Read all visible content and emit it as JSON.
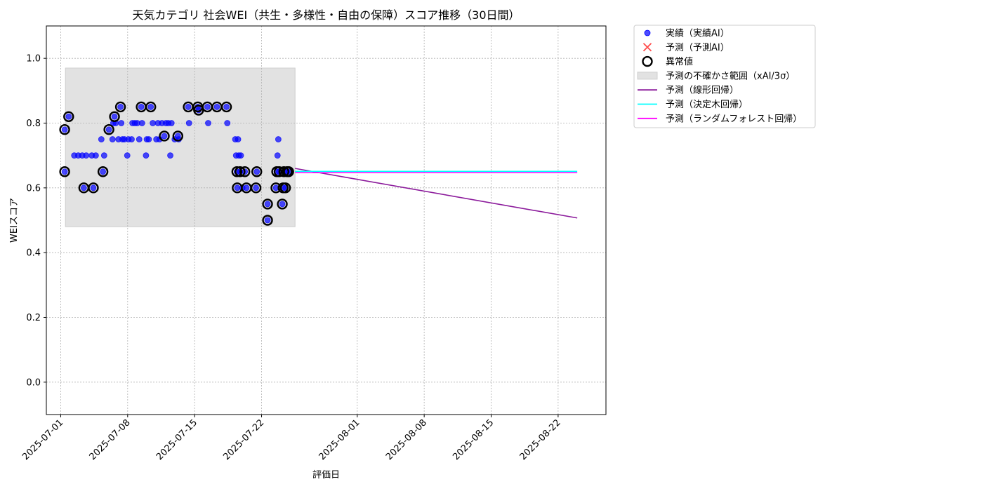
{
  "chart_data": {
    "type": "scatter",
    "title": "天気カテゴリ 社会WEI（共生・多様性・自由の保障）スコア推移（30日間）",
    "xlabel": "評価日",
    "ylabel": "WEIスコア",
    "xlim": [
      "2025-06-29T12:00",
      "2025-08-27"
    ],
    "ylim": [
      -0.1,
      1.1
    ],
    "grid": true,
    "legend_position": "outside-top-right",
    "x_ticks": [
      "2025-07-01",
      "2025-07-08",
      "2025-07-15",
      "2025-07-22",
      "2025-08-01",
      "2025-08-08",
      "2025-08-15",
      "2025-08-22"
    ],
    "y_ticks": [
      "0.0",
      "0.2",
      "0.4",
      "0.6",
      "0.8",
      "1.0"
    ],
    "legend": [
      {
        "key": "actual",
        "label": "実績（実績AI）",
        "color": "#0000ff"
      },
      {
        "key": "predicted",
        "label": "予測（予測AI）",
        "color": "#ff0000"
      },
      {
        "key": "anomaly",
        "label": "異常値",
        "color": "#000000"
      },
      {
        "key": "band",
        "label": "予測の不確かさ範囲（xAI/3σ）",
        "color": "#d3d3d3"
      },
      {
        "key": "linear",
        "label": "予測（線形回帰）",
        "color": "#8b1a9b"
      },
      {
        "key": "tree",
        "label": "予測（決定木回帰）",
        "color": "#00ffff"
      },
      {
        "key": "forest",
        "label": "予測（ランダムフォレスト回帰）",
        "color": "#ff00ff"
      }
    ],
    "uncertainty_band": {
      "x_start": "2025-07-01T12:00",
      "x_end": "2025-07-25T12:00",
      "y_low": 0.48,
      "y_high": 0.97
    },
    "series": [
      {
        "name": "実績（実績AI）",
        "marker": "circle",
        "color": "#0000ff",
        "points": [
          [
            "2025-07-01T10:00",
            0.65
          ],
          [
            "2025-07-01T10:00",
            0.78
          ],
          [
            "2025-07-01T20:00",
            0.82
          ],
          [
            "2025-07-02T10:00",
            0.7
          ],
          [
            "2025-07-02T20:00",
            0.7
          ],
          [
            "2025-07-03T06:00",
            0.7
          ],
          [
            "2025-07-03T10:00",
            0.6
          ],
          [
            "2025-07-03T16:00",
            0.7
          ],
          [
            "2025-07-04T06:00",
            0.7
          ],
          [
            "2025-07-04T10:00",
            0.6
          ],
          [
            "2025-07-04T16:00",
            0.7
          ],
          [
            "2025-07-05T06:00",
            0.75
          ],
          [
            "2025-07-05T10:00",
            0.65
          ],
          [
            "2025-07-05T13:00",
            0.7
          ],
          [
            "2025-07-06T01:00",
            0.78
          ],
          [
            "2025-07-06T10:00",
            0.75
          ],
          [
            "2025-07-06T12:00",
            0.8
          ],
          [
            "2025-07-06T15:00",
            0.82
          ],
          [
            "2025-07-06T18:00",
            0.8
          ],
          [
            "2025-07-07T01:00",
            0.75
          ],
          [
            "2025-07-07T06:00",
            0.85
          ],
          [
            "2025-07-07T08:00",
            0.8
          ],
          [
            "2025-07-07T11:00",
            0.75
          ],
          [
            "2025-07-07T16:00",
            0.75
          ],
          [
            "2025-07-07T23:00",
            0.7
          ],
          [
            "2025-07-08T02:00",
            0.75
          ],
          [
            "2025-07-08T10:00",
            0.75
          ],
          [
            "2025-07-08T12:00",
            0.8
          ],
          [
            "2025-07-08T18:00",
            0.8
          ],
          [
            "2025-07-09T00:00",
            0.8
          ],
          [
            "2025-07-09T05:00",
            0.75
          ],
          [
            "2025-07-09T10:00",
            0.85
          ],
          [
            "2025-07-09T12:00",
            0.8
          ],
          [
            "2025-07-09T22:00",
            0.7
          ],
          [
            "2025-07-10T00:00",
            0.75
          ],
          [
            "2025-07-10T05:00",
            0.75
          ],
          [
            "2025-07-10T10:00",
            0.85
          ],
          [
            "2025-07-10T15:00",
            0.8
          ],
          [
            "2025-07-11T00:00",
            0.75
          ],
          [
            "2025-07-11T04:00",
            0.8
          ],
          [
            "2025-07-11T08:00",
            0.75
          ],
          [
            "2025-07-11T14:00",
            0.8
          ],
          [
            "2025-07-11T20:00",
            0.76
          ],
          [
            "2025-07-12T00:00",
            0.8
          ],
          [
            "2025-07-12T06:00",
            0.8
          ],
          [
            "2025-07-12T11:00",
            0.7
          ],
          [
            "2025-07-12T14:00",
            0.8
          ],
          [
            "2025-07-12T22:00",
            0.75
          ],
          [
            "2025-07-13T06:00",
            0.76
          ],
          [
            "2025-07-13T08:00",
            0.75
          ],
          [
            "2025-07-14T08:00",
            0.85
          ],
          [
            "2025-07-14T10:00",
            0.8
          ],
          [
            "2025-07-15T08:00",
            0.85
          ],
          [
            "2025-07-15T10:00",
            0.84
          ],
          [
            "2025-07-16T08:00",
            0.85
          ],
          [
            "2025-07-16T10:00",
            0.8
          ],
          [
            "2025-07-17T08:00",
            0.85
          ],
          [
            "2025-07-18T08:00",
            0.85
          ],
          [
            "2025-07-18T10:00",
            0.8
          ],
          [
            "2025-07-19T06:00",
            0.75
          ],
          [
            "2025-07-19T08:00",
            0.7
          ],
          [
            "2025-07-19T10:00",
            0.65
          ],
          [
            "2025-07-19T11:00",
            0.6
          ],
          [
            "2025-07-19T13:00",
            0.75
          ],
          [
            "2025-07-19T15:00",
            0.7
          ],
          [
            "2025-07-19T18:00",
            0.65
          ],
          [
            "2025-07-19T20:00",
            0.7
          ],
          [
            "2025-07-20T00:00",
            0.6
          ],
          [
            "2025-07-20T06:00",
            0.65
          ],
          [
            "2025-07-20T10:00",
            0.6
          ],
          [
            "2025-07-21T10:00",
            0.6
          ],
          [
            "2025-07-21T12:00",
            0.65
          ],
          [
            "2025-07-22T15:00",
            0.55
          ],
          [
            "2025-07-22T15:00",
            0.5
          ],
          [
            "2025-07-23T12:00",
            0.6
          ],
          [
            "2025-07-23T14:00",
            0.65
          ],
          [
            "2025-07-23T16:00",
            0.7
          ],
          [
            "2025-07-23T18:00",
            0.75
          ],
          [
            "2025-07-23T20:00",
            0.65
          ],
          [
            "2025-07-24T04:00",
            0.55
          ],
          [
            "2025-07-24T06:00",
            0.6
          ],
          [
            "2025-07-24T08:00",
            0.65
          ],
          [
            "2025-07-24T12:00",
            0.6
          ],
          [
            "2025-07-24T16:00",
            0.65
          ],
          [
            "2025-07-24T20:00",
            0.65
          ]
        ]
      },
      {
        "name": "異常値",
        "marker": "ring",
        "color": "#000000",
        "points": [
          [
            "2025-07-01T10:00",
            0.65
          ],
          [
            "2025-07-01T10:00",
            0.78
          ],
          [
            "2025-07-01T20:00",
            0.82
          ],
          [
            "2025-07-03T10:00",
            0.6
          ],
          [
            "2025-07-04T10:00",
            0.6
          ],
          [
            "2025-07-05T10:00",
            0.65
          ],
          [
            "2025-07-06T01:00",
            0.78
          ],
          [
            "2025-07-06T15:00",
            0.82
          ],
          [
            "2025-07-07T06:00",
            0.85
          ],
          [
            "2025-07-09T10:00",
            0.85
          ],
          [
            "2025-07-10T10:00",
            0.85
          ],
          [
            "2025-07-11T20:00",
            0.76
          ],
          [
            "2025-07-13T06:00",
            0.76
          ],
          [
            "2025-07-14T08:00",
            0.85
          ],
          [
            "2025-07-15T08:00",
            0.85
          ],
          [
            "2025-07-15T10:00",
            0.84
          ],
          [
            "2025-07-16T08:00",
            0.85
          ],
          [
            "2025-07-17T08:00",
            0.85
          ],
          [
            "2025-07-18T08:00",
            0.85
          ],
          [
            "2025-07-19T10:00",
            0.65
          ],
          [
            "2025-07-19T11:00",
            0.6
          ],
          [
            "2025-07-19T18:00",
            0.65
          ],
          [
            "2025-07-20T06:00",
            0.65
          ],
          [
            "2025-07-20T10:00",
            0.6
          ],
          [
            "2025-07-21T10:00",
            0.6
          ],
          [
            "2025-07-21T12:00",
            0.65
          ],
          [
            "2025-07-22T15:00",
            0.55
          ],
          [
            "2025-07-22T15:00",
            0.5
          ],
          [
            "2025-07-23T12:00",
            0.6
          ],
          [
            "2025-07-23T14:00",
            0.65
          ],
          [
            "2025-07-23T20:00",
            0.65
          ],
          [
            "2025-07-24T04:00",
            0.55
          ],
          [
            "2025-07-24T06:00",
            0.6
          ],
          [
            "2025-07-24T08:00",
            0.65
          ],
          [
            "2025-07-24T12:00",
            0.6
          ],
          [
            "2025-07-24T16:00",
            0.65
          ],
          [
            "2025-07-24T20:00",
            0.65
          ]
        ]
      },
      {
        "name": "予測（線形回帰）",
        "type": "line",
        "color": "#8b1a9b",
        "points": [
          [
            "2025-07-25T12:00",
            0.66
          ],
          [
            "2025-08-24T00:00",
            0.507
          ]
        ]
      },
      {
        "name": "予測（決定木回帰）",
        "type": "line",
        "color": "#00ffff",
        "points": [
          [
            "2025-07-25T12:00",
            0.651
          ],
          [
            "2025-08-24T00:00",
            0.651
          ]
        ]
      },
      {
        "name": "予測（ランダムフォレスト回帰）",
        "type": "line",
        "color": "#ff00ff",
        "points": [
          [
            "2025-07-25T12:00",
            0.647
          ],
          [
            "2025-08-24T00:00",
            0.647
          ]
        ]
      }
    ]
  }
}
